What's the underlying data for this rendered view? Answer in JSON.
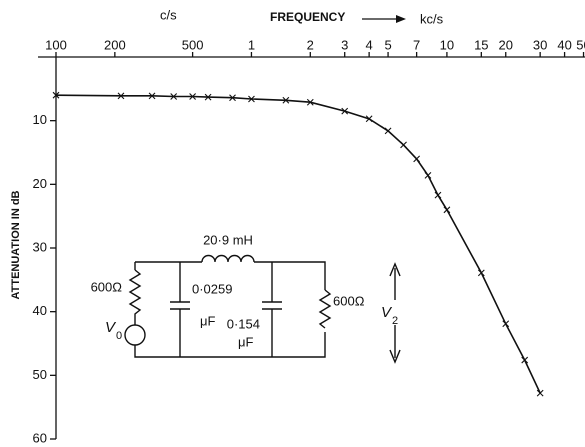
{
  "chart_data": {
    "type": "line",
    "x_unit_low": "c/s",
    "x_label": "FREQUENCY",
    "x_unit_high": "kc/s",
    "y_label": "ATTENUATION IN dB",
    "x": [
      100,
      215,
      310,
      400,
      500,
      600,
      800,
      1000,
      1500,
      2000,
      3000,
      4000,
      5000,
      6000,
      7000,
      8000,
      9000,
      10000,
      15000,
      20000,
      25000,
      30000
    ],
    "values": [
      6.0,
      6.1,
      6.1,
      6.2,
      6.2,
      6.3,
      6.4,
      6.6,
      6.8,
      7.1,
      8.5,
      9.7,
      11.6,
      13.8,
      16.0,
      18.6,
      21.7,
      24.0,
      33.9,
      41.9,
      47.6,
      52.8
    ],
    "color": "#111111",
    "x_log": true,
    "y_inverted": true,
    "xlim": [
      100,
      60000
    ],
    "xticks": [
      100,
      200,
      500,
      {
        "value": 1000,
        "label": "1"
      },
      {
        "value": 2000,
        "label": "2"
      },
      {
        "value": 3000,
        "label": "3"
      },
      {
        "value": 4000,
        "label": "4"
      },
      {
        "value": 5000,
        "label": "5"
      },
      {
        "value": 7000,
        "label": "7"
      },
      {
        "value": 10000,
        "label": "10"
      },
      {
        "value": 15000,
        "label": "15"
      },
      {
        "value": 20000,
        "label": "20"
      },
      {
        "value": 30000,
        "label": "30"
      },
      {
        "value": 40000,
        "label": "40"
      },
      {
        "value": 50000,
        "label": "50"
      }
    ],
    "ylim": [
      0,
      60
    ],
    "yticks": [
      10,
      20,
      30,
      40,
      50,
      60
    ]
  },
  "circuit": {
    "inductor": "20·9 mH",
    "source_resistor": "600Ω",
    "capacitor_1": "0·0259",
    "capacitor_1_unit": "μF",
    "capacitor_2": "0·154",
    "capacitor_2_unit": "μF",
    "load_resistor": "600Ω",
    "source_symbol": "V",
    "source_subscript": "0",
    "output_symbol": "V",
    "output_subscript": "2"
  }
}
